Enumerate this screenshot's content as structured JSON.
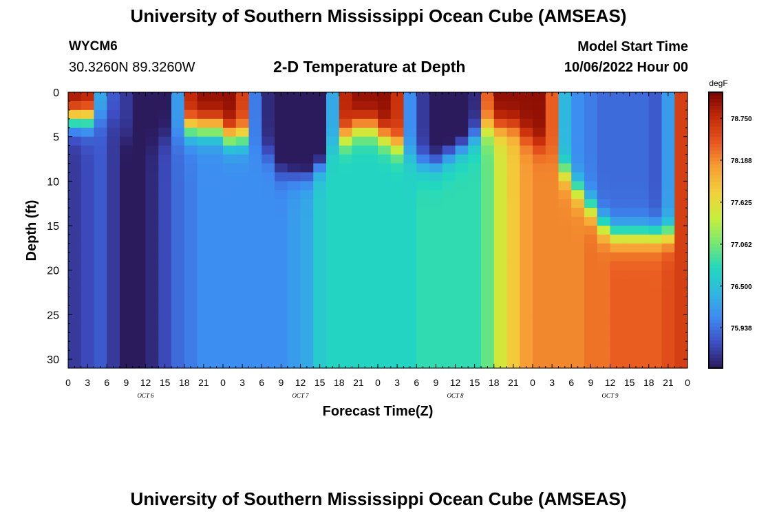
{
  "header": {
    "title": "University of Southern Mississippi Ocean Cube (AMSEAS)",
    "station": "WYCM6",
    "coords": "30.3260N  89.3260W",
    "subtitle": "2-D Temperature at Depth",
    "model_start_label": "Model Start Time",
    "model_start_value": "10/06/2022 Hour 00"
  },
  "footer": {
    "title": "University of Southern Mississippi Ocean Cube (AMSEAS)"
  },
  "colors": {
    "colormap": [
      "#2b1a5c",
      "#3d4fc4",
      "#3e8af2",
      "#2fb8e0",
      "#22d8be",
      "#7ae870",
      "#c9ee3b",
      "#f2d03a",
      "#f7a035",
      "#e8571f",
      "#c22a08",
      "#7a0402"
    ]
  },
  "chart_data": {
    "type": "heatmap",
    "xlabel": "Forecast Time(Z)",
    "ylabel": "Depth (ft)",
    "x_tick_labels": [
      "0",
      "3",
      "6",
      "9",
      "12",
      "15",
      "18",
      "21",
      "0",
      "3",
      "6",
      "9",
      "12",
      "15",
      "18",
      "21",
      "0",
      "3",
      "6",
      "9",
      "12",
      "15",
      "18",
      "21",
      "0",
      "3",
      "6",
      "9",
      "12",
      "15",
      "18",
      "21",
      "0"
    ],
    "x_range_hours": [
      0,
      96
    ],
    "day_labels": [
      "OCT 6",
      "OCT 7",
      "OCT 8",
      "OCT 9"
    ],
    "y_ticks": [
      0,
      5,
      10,
      15,
      20,
      25,
      30
    ],
    "y_range": [
      0,
      31
    ],
    "y_inverted": true,
    "colorbar": {
      "unit": "degF",
      "tick_labels": [
        "78.750",
        "78.188",
        "77.625",
        "77.062",
        "76.500",
        "75.938"
      ],
      "range": [
        75.4,
        79.1
      ]
    },
    "time_hours": [
      0,
      2,
      4,
      6,
      8,
      10,
      12,
      14,
      16,
      18,
      20,
      22,
      24,
      26,
      28,
      30,
      32,
      34,
      36,
      38,
      40,
      42,
      44,
      46,
      48,
      50,
      52,
      54,
      56,
      58,
      60,
      62,
      64,
      66,
      68,
      70,
      72,
      74,
      76,
      78,
      80,
      82,
      84,
      86,
      88,
      90,
      92,
      94,
      96
    ],
    "surface_temp": [
      79.0,
      78.9,
      76.3,
      75.8,
      75.6,
      75.4,
      75.4,
      75.4,
      76.2,
      78.8,
      79.0,
      79.0,
      79.0,
      78.6,
      76.0,
      75.5,
      75.3,
      75.1,
      75.0,
      75.0,
      76.3,
      78.8,
      79.0,
      79.0,
      79.0,
      78.7,
      76.1,
      75.6,
      75.3,
      75.2,
      75.1,
      75.5,
      78.4,
      79.0,
      79.0,
      79.0,
      79.0,
      78.4,
      76.4,
      76.1,
      76.0,
      75.9,
      75.9,
      75.9,
      75.9,
      75.8,
      76.2,
      78.6,
      78.7
    ],
    "deep_temp": [
      75.6,
      75.7,
      75.8,
      75.6,
      75.4,
      75.3,
      75.5,
      75.7,
      75.9,
      76.0,
      76.1,
      76.1,
      76.1,
      76.1,
      76.1,
      76.1,
      76.1,
      76.2,
      76.3,
      76.6,
      76.7,
      76.7,
      76.7,
      76.7,
      76.7,
      76.7,
      76.7,
      76.8,
      76.8,
      76.8,
      76.8,
      76.8,
      77.0,
      77.5,
      77.8,
      78.1,
      78.2,
      78.2,
      78.2,
      78.2,
      78.3,
      78.3,
      78.4,
      78.4,
      78.4,
      78.4,
      78.5,
      78.6,
      78.6
    ],
    "mixed_layer_depth_ft": [
      3,
      3,
      3,
      3,
      5,
      5,
      6,
      5,
      5,
      4,
      4,
      4,
      5,
      5,
      6,
      7,
      9,
      9,
      9,
      8,
      6,
      5,
      4,
      4,
      5,
      6,
      7,
      8,
      8,
      7,
      6,
      5,
      4,
      4,
      4,
      5,
      6,
      7,
      9,
      11,
      13,
      15,
      16,
      16,
      16,
      16,
      16,
      16,
      16
    ]
  }
}
